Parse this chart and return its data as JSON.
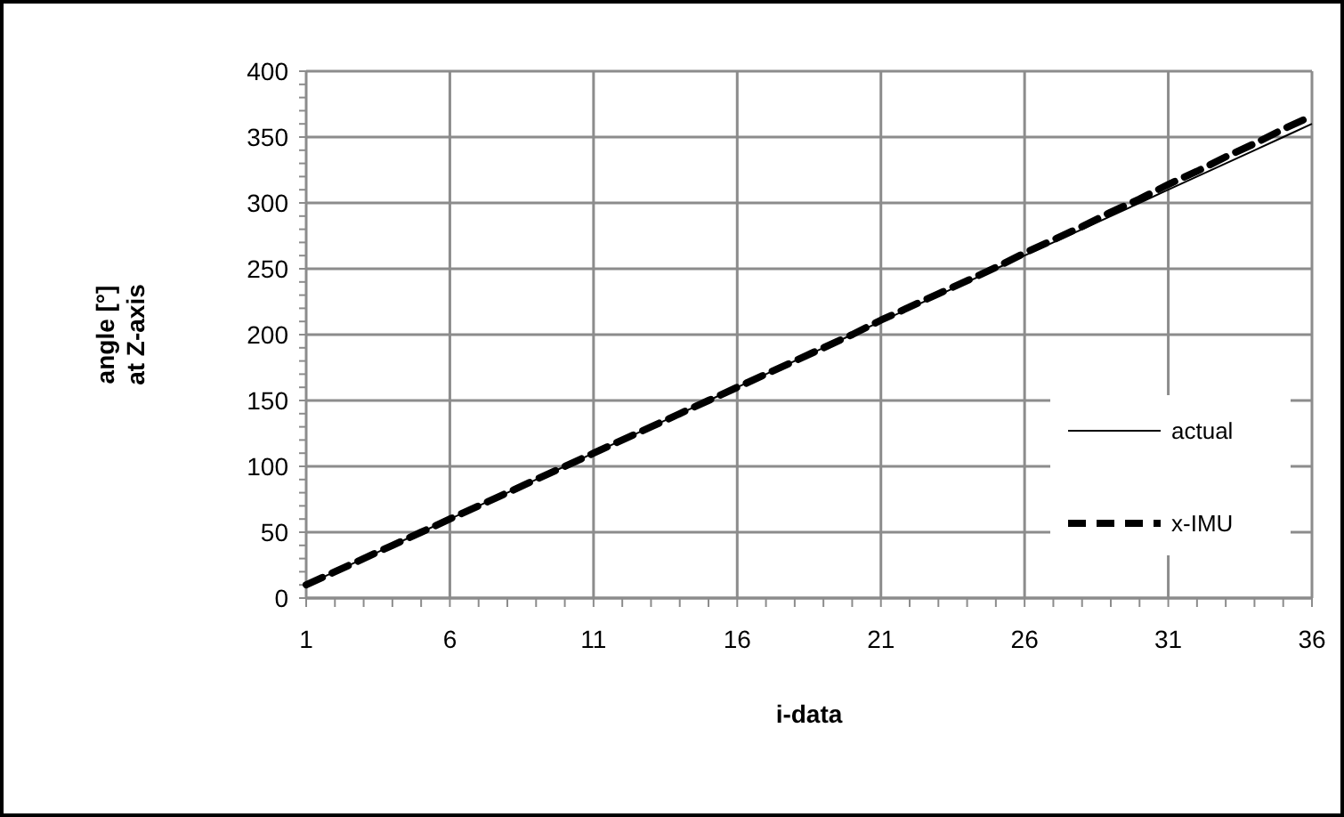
{
  "chart_data": {
    "type": "line",
    "xlabel": "i-data",
    "ylabel": "angle [°]\nat Z-axis",
    "x": [
      1,
      2,
      3,
      4,
      5,
      6,
      7,
      8,
      9,
      10,
      11,
      12,
      13,
      14,
      15,
      16,
      17,
      18,
      19,
      20,
      21,
      22,
      23,
      24,
      25,
      26,
      27,
      28,
      29,
      30,
      31,
      32,
      33,
      34,
      35,
      36
    ],
    "xlim": [
      1,
      36
    ],
    "xticks": [
      1,
      6,
      11,
      16,
      21,
      26,
      31,
      36
    ],
    "ylim": [
      0,
      400
    ],
    "yticks": [
      0,
      50,
      100,
      150,
      200,
      250,
      300,
      350,
      400
    ],
    "grid": true,
    "legend": "right",
    "marker": "none",
    "series": [
      {
        "name": "actual",
        "color": "#000000",
        "line_style": "solid",
        "values": [
          10,
          20,
          30,
          40,
          50,
          60,
          70,
          80,
          90,
          100,
          110,
          120,
          130,
          140,
          150,
          160,
          170,
          180,
          190,
          200,
          210,
          220,
          230,
          240,
          250,
          260,
          270,
          280,
          290,
          300,
          310,
          320,
          330,
          340,
          350,
          360
        ]
      },
      {
        "name": "x-IMU",
        "color": "#000000",
        "line_style": "dashed",
        "values": [
          10,
          20,
          30,
          40,
          50,
          60,
          70,
          80,
          90,
          100,
          110,
          120,
          130,
          140,
          150,
          160,
          170,
          180,
          190,
          200,
          211,
          221,
          231,
          241,
          251,
          262,
          272,
          282,
          293,
          303,
          314,
          324,
          335,
          345,
          356,
          366
        ]
      }
    ]
  }
}
